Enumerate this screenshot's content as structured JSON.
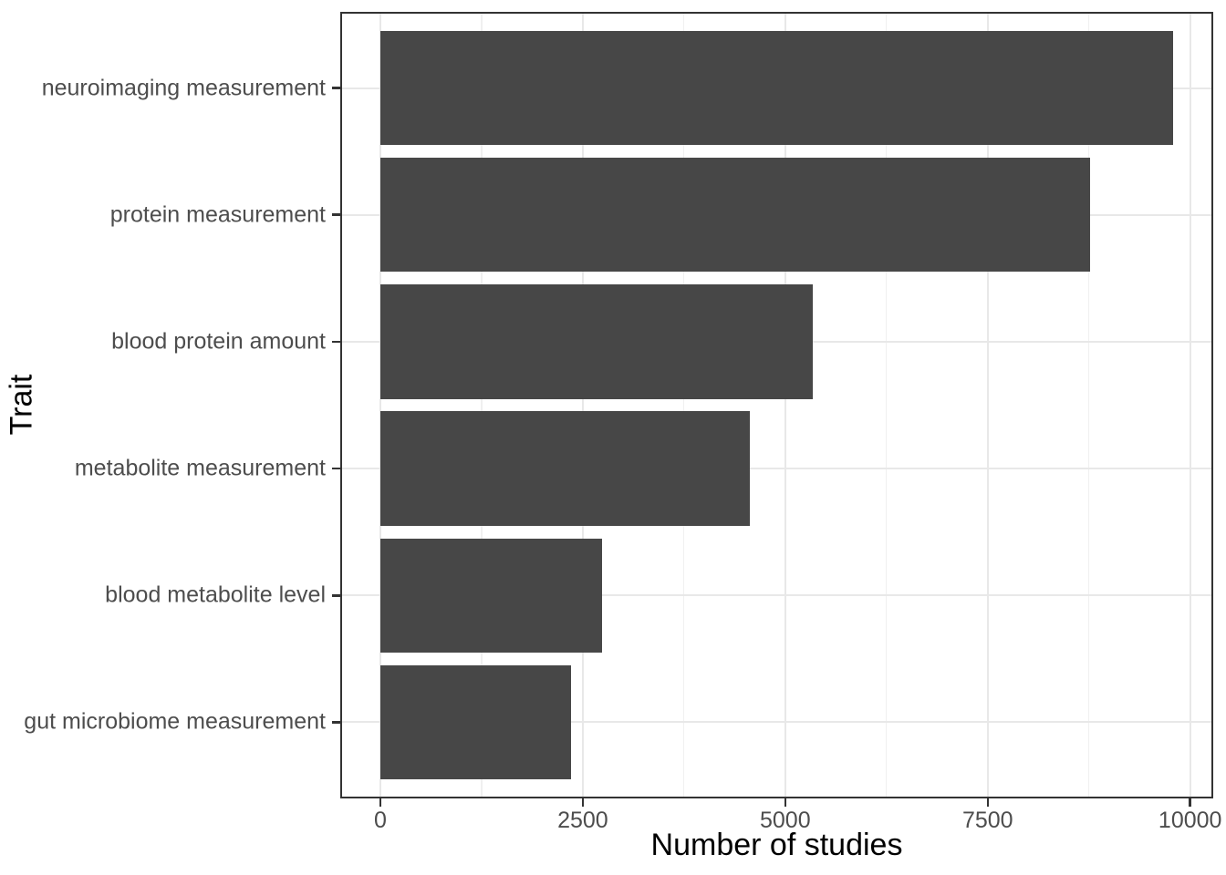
{
  "chart_data": {
    "type": "bar",
    "orientation": "horizontal",
    "title": "",
    "xlabel": "Number of studies",
    "ylabel": "Trait",
    "categories": [
      "neuroimaging measurement",
      "protein measurement",
      "blood protein amount",
      "metabolite measurement",
      "blood metabolite level",
      "gut microbiome measurement"
    ],
    "values": [
      9785,
      8760,
      5340,
      4560,
      2735,
      2355
    ],
    "xticks": [
      0,
      2500,
      5000,
      7500,
      10000
    ],
    "xtick_labels": [
      "0",
      "2500",
      "5000",
      "7500",
      "10000"
    ],
    "minor_xticks": [
      1250,
      3750,
      6250,
      8750
    ],
    "x_domain": [
      -495,
      10285
    ],
    "bar_width_fraction": 0.9,
    "grid": "major+minor vertical, major horizontal, on white panel with border",
    "legend_position": "none",
    "colors": {
      "bar": "#474747",
      "panel_border": "#333333",
      "grid_major": "#e8e8e8",
      "grid_minor": "#f0f0f0",
      "tick_mark": "#333333",
      "axis_text": "#4d4d4d",
      "axis_title": "#000000",
      "background": "#ffffff"
    }
  }
}
